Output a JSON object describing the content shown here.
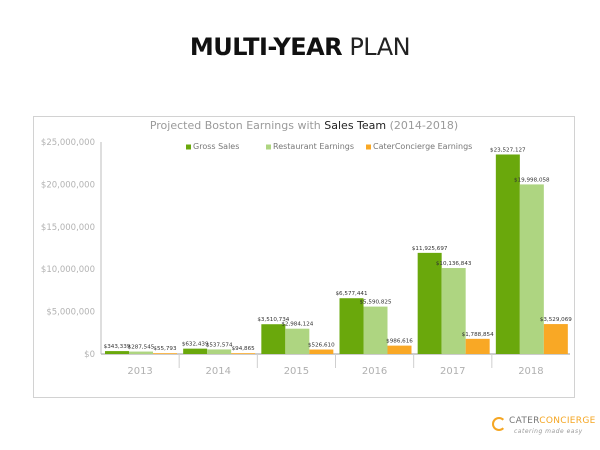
{
  "page": {
    "title_bold": "MULTI-YEAR",
    "title_light": "PLAN"
  },
  "logo": {
    "name_a": "CATER",
    "name_b": "CONCIERGE",
    "tagline": "catering made easy",
    "accent_color": "#f5a623"
  },
  "chart_data": {
    "type": "bar",
    "title_prefix": "Projected Boston Earnings with ",
    "title_bold": "Sales Team",
    "title_suffix": " (2014-2018)",
    "xlabel": "",
    "ylabel": "",
    "categories": [
      "2013",
      "2014",
      "2015",
      "2016",
      "2017",
      "2018"
    ],
    "ylim": [
      0,
      25000000
    ],
    "yticks": [
      0,
      5000000,
      10000000,
      15000000,
      20000000,
      25000000
    ],
    "ytick_labels": [
      "$0",
      "$5,000,000",
      "$10,000,000",
      "$15,000,000",
      "$20,000,000",
      "$25,000,000"
    ],
    "grid": false,
    "legend_position": "top",
    "series": [
      {
        "name": "Gross Sales",
        "color": "#6aa80c",
        "values": [
          343339,
          632439,
          3510734,
          6577441,
          11925697,
          23527127
        ],
        "labels": [
          "$343,339",
          "$632,439",
          "$3,510,734",
          "$6,577,441",
          "$11,925,697",
          "$23,527,127"
        ]
      },
      {
        "name": "Restaurant Earnings",
        "color": "#aed581",
        "values": [
          287545,
          537574,
          2984124,
          5590825,
          10136843,
          19998058
        ],
        "labels": [
          "$287,545",
          "$537,574",
          "$2,984,124",
          "$5,590,825",
          "$10,136,843",
          "$19,998,058"
        ]
      },
      {
        "name": "CaterConcierge Earnings",
        "color": "#f9a825",
        "values": [
          55793,
          94865,
          526610,
          986616,
          1788854,
          3529069
        ],
        "labels": [
          "$55,793",
          "$94,865",
          "$526,610",
          "$986,616",
          "$1,788,854",
          "$3,529,069"
        ]
      }
    ]
  }
}
